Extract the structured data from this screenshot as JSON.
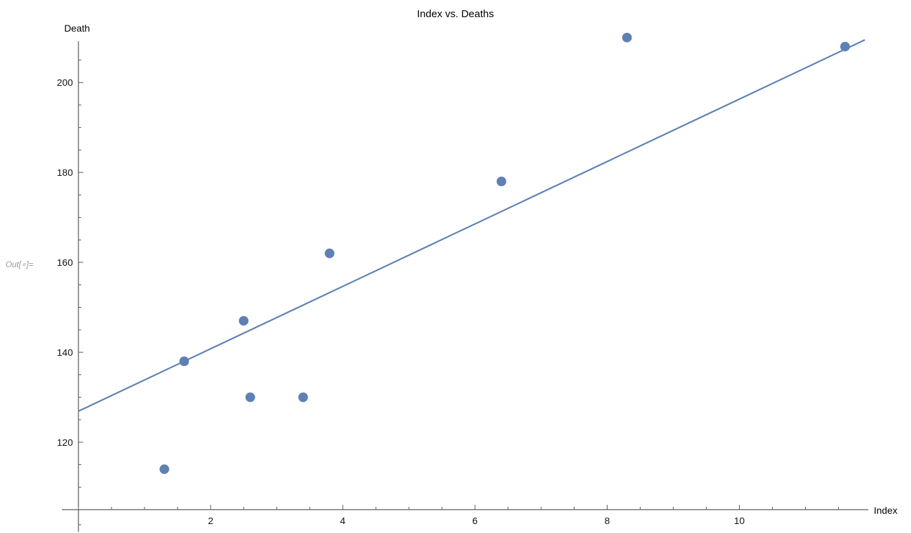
{
  "output_prompt": "Out[∘]=",
  "chart_data": {
    "type": "scatter",
    "title": "Index vs. Deaths",
    "xlabel": "Index",
    "ylabel": "Death",
    "xlim": [
      0,
      11.9
    ],
    "ylim": [
      105,
      215
    ],
    "x_ticks": [
      2,
      4,
      6,
      8,
      10
    ],
    "y_ticks": [
      120,
      140,
      160,
      180,
      200
    ],
    "x_tick_labels": [
      "2",
      "4",
      "6",
      "8",
      "10"
    ],
    "y_tick_labels": [
      "120",
      "140",
      "160",
      "180",
      "200"
    ],
    "x_minor_step": 0.5,
    "y_minor_step": 5,
    "grid": false,
    "legend": "none",
    "series": [
      {
        "type": "scatter",
        "color": "#5e81b5",
        "x": [
          1.3,
          1.6,
          2.5,
          2.6,
          3.4,
          3.8,
          6.4,
          8.3,
          11.6
        ],
        "y": [
          114,
          138,
          147,
          130,
          130,
          162,
          178,
          210,
          208
        ]
      },
      {
        "type": "line",
        "color": "#5e81b5",
        "x": [
          0,
          11.9
        ],
        "y": [
          126.9,
          209.5
        ]
      }
    ]
  }
}
